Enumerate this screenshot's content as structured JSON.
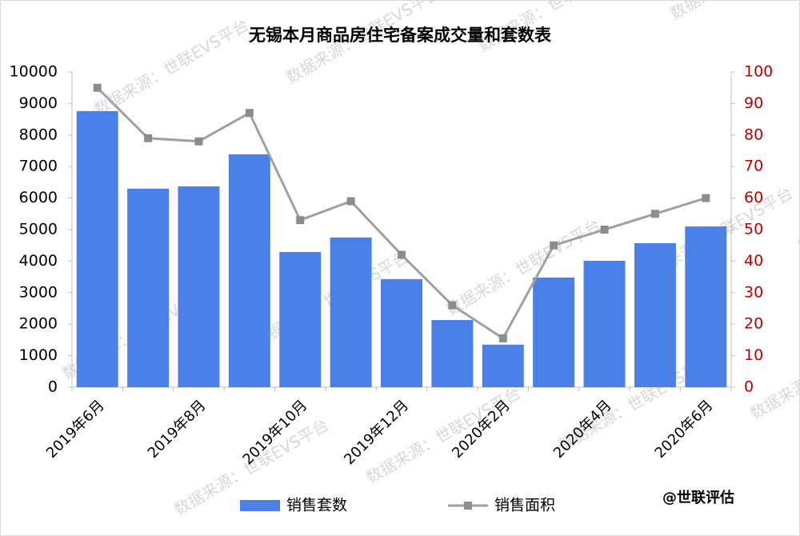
{
  "chart_data": {
    "type": "bar-line",
    "title": "无锡本月商品房住宅备案成交量和套数表",
    "watermark": "数据来源：世联EVS平台",
    "credit": "@世联评估",
    "categories": [
      "2019年6月",
      null,
      "2019年8月",
      null,
      "2019年10月",
      null,
      "2019年12月",
      null,
      "2020年2月",
      null,
      "2020年4月",
      null,
      "2020年6月"
    ],
    "series": [
      {
        "name": "销售套数",
        "color": "#4a80e8",
        "type": "bar",
        "values": [
          8760,
          6300,
          6370,
          7390,
          4290,
          4750,
          3430,
          2130,
          1350,
          3480,
          4010,
          4570,
          5100
        ]
      },
      {
        "name": "销售面积",
        "color": "#a0a0a0",
        "type": "line",
        "axis": "y2",
        "values": [
          95,
          79,
          78,
          87,
          53,
          59,
          42,
          26,
          15.5,
          45,
          50,
          55,
          60
        ]
      }
    ],
    "ylim": [
      0,
      10000
    ],
    "yticks": [
      0,
      1000,
      2000,
      3000,
      4000,
      5000,
      6000,
      7000,
      8000,
      9000,
      10000
    ],
    "y2lim": [
      0,
      100
    ],
    "y2ticks": [
      0,
      10,
      20,
      30,
      40,
      50,
      60,
      70,
      80,
      90,
      100
    ],
    "y2_color": "#c00000",
    "grid": false
  }
}
